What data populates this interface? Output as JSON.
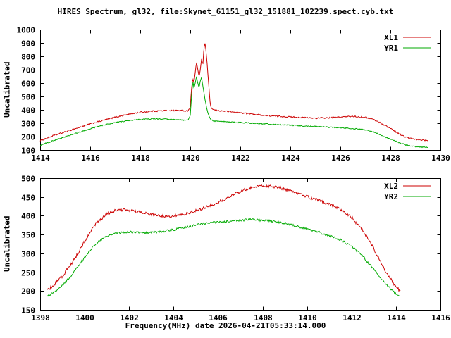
{
  "title": "HIRES Spectrum, gl32, file:Skynet_61151_gl32_151881_102239.spect.cyb.txt",
  "xlabel": "Frequency(MHz) date 2026-04-21T05:33:14.000",
  "colors": {
    "line_red": "#cc0000",
    "line_green": "#00aa00",
    "axis": "#000000",
    "background": "#ffffff"
  },
  "chart_data": [
    {
      "type": "line",
      "ylabel": "Uncalibrated",
      "xlim": [
        1414,
        1430
      ],
      "xtick_step": 2,
      "ylim": [
        100,
        1000
      ],
      "ytick_step": 100,
      "grid": false,
      "legend_position": "top-right",
      "series": [
        {
          "name": "XL1",
          "color": "#cc0000",
          "noise": 5,
          "points": [
            [
              1414,
              170
            ],
            [
              1414.5,
              205
            ],
            [
              1415,
              235
            ],
            [
              1415.5,
              265
            ],
            [
              1416,
              295
            ],
            [
              1416.5,
              320
            ],
            [
              1417,
              345
            ],
            [
              1417.5,
              365
            ],
            [
              1418,
              382
            ],
            [
              1418.5,
              390
            ],
            [
              1419,
              394
            ],
            [
              1419.5,
              396
            ],
            [
              1419.9,
              392
            ],
            [
              1420,
              420
            ],
            [
              1420.05,
              560
            ],
            [
              1420.1,
              640
            ],
            [
              1420.15,
              600
            ],
            [
              1420.2,
              680
            ],
            [
              1420.25,
              760
            ],
            [
              1420.3,
              700
            ],
            [
              1420.35,
              645
            ],
            [
              1420.4,
              700
            ],
            [
              1420.45,
              780
            ],
            [
              1420.5,
              730
            ],
            [
              1420.55,
              870
            ],
            [
              1420.6,
              895
            ],
            [
              1420.65,
              800
            ],
            [
              1420.7,
              680
            ],
            [
              1420.75,
              555
            ],
            [
              1420.8,
              430
            ],
            [
              1420.9,
              402
            ],
            [
              1421,
              396
            ],
            [
              1421.5,
              388
            ],
            [
              1422,
              378
            ],
            [
              1422.5,
              368
            ],
            [
              1423,
              358
            ],
            [
              1423.5,
              352
            ],
            [
              1424,
              347
            ],
            [
              1424.5,
              342
            ],
            [
              1425,
              338
            ],
            [
              1425.5,
              340
            ],
            [
              1426,
              346
            ],
            [
              1426.5,
              352
            ],
            [
              1427,
              344
            ],
            [
              1427.3,
              330
            ],
            [
              1427.6,
              302
            ],
            [
              1428,
              262
            ],
            [
              1428.3,
              226
            ],
            [
              1428.6,
              196
            ],
            [
              1429,
              178
            ],
            [
              1429.5,
              172
            ]
          ]
        },
        {
          "name": "YR1",
          "color": "#00aa00",
          "noise": 4,
          "points": [
            [
              1414,
              135
            ],
            [
              1414.5,
              168
            ],
            [
              1415,
              198
            ],
            [
              1415.5,
              228
            ],
            [
              1416,
              258
            ],
            [
              1416.5,
              285
            ],
            [
              1417,
              305
            ],
            [
              1417.5,
              318
            ],
            [
              1418,
              328
            ],
            [
              1418.5,
              333
            ],
            [
              1419,
              330
            ],
            [
              1419.5,
              325
            ],
            [
              1419.9,
              321
            ],
            [
              1420,
              355
            ],
            [
              1420.05,
              500
            ],
            [
              1420.1,
              615
            ],
            [
              1420.15,
              560
            ],
            [
              1420.2,
              600
            ],
            [
              1420.25,
              648
            ],
            [
              1420.3,
              600
            ],
            [
              1420.35,
              565
            ],
            [
              1420.4,
              618
            ],
            [
              1420.45,
              640
            ],
            [
              1420.5,
              580
            ],
            [
              1420.55,
              525
            ],
            [
              1420.6,
              465
            ],
            [
              1420.65,
              420
            ],
            [
              1420.7,
              380
            ],
            [
              1420.8,
              332
            ],
            [
              1420.9,
              320
            ],
            [
              1421,
              316
            ],
            [
              1421.5,
              310
            ],
            [
              1422,
              305
            ],
            [
              1422.5,
              300
            ],
            [
              1423,
              295
            ],
            [
              1423.5,
              290
            ],
            [
              1424,
              285
            ],
            [
              1424.5,
              280
            ],
            [
              1425,
              276
            ],
            [
              1425.5,
              271
            ],
            [
              1426,
              266
            ],
            [
              1426.5,
              260
            ],
            [
              1427,
              250
            ],
            [
              1427.3,
              236
            ],
            [
              1427.6,
              212
            ],
            [
              1428,
              182
            ],
            [
              1428.3,
              158
            ],
            [
              1428.6,
              138
            ],
            [
              1429,
              125
            ],
            [
              1429.5,
              120
            ]
          ]
        }
      ]
    },
    {
      "type": "line",
      "ylabel": "Uncalibrated",
      "xlim": [
        1398,
        1416
      ],
      "xtick_step": 2,
      "ylim": [
        150,
        500
      ],
      "ytick_step": 50,
      "grid": false,
      "legend_position": "top-right",
      "series": [
        {
          "name": "XL2",
          "color": "#cc0000",
          "noise": 4,
          "points": [
            [
              1398.3,
              200
            ],
            [
              1398.6,
              216
            ],
            [
              1399,
              240
            ],
            [
              1399.5,
              280
            ],
            [
              1400,
              332
            ],
            [
              1400.5,
              378
            ],
            [
              1401,
              405
            ],
            [
              1401.5,
              416
            ],
            [
              1402,
              415
            ],
            [
              1402.5,
              409
            ],
            [
              1403,
              404
            ],
            [
              1403.5,
              400
            ],
            [
              1404,
              399
            ],
            [
              1404.5,
              404
            ],
            [
              1405,
              413
            ],
            [
              1405.5,
              424
            ],
            [
              1406,
              436
            ],
            [
              1406.5,
              451
            ],
            [
              1407,
              465
            ],
            [
              1407.5,
              475
            ],
            [
              1408,
              480
            ],
            [
              1408.5,
              478
            ],
            [
              1409,
              471
            ],
            [
              1409.5,
              461
            ],
            [
              1410,
              451
            ],
            [
              1410.5,
              441
            ],
            [
              1411,
              431
            ],
            [
              1411.5,
              417
            ],
            [
              1412,
              396
            ],
            [
              1412.5,
              362
            ],
            [
              1413,
              312
            ],
            [
              1413.5,
              256
            ],
            [
              1414,
              210
            ],
            [
              1414.2,
              200
            ]
          ]
        },
        {
          "name": "YR2",
          "color": "#00aa00",
          "noise": 3,
          "points": [
            [
              1398.3,
              185
            ],
            [
              1398.6,
              196
            ],
            [
              1399,
              214
            ],
            [
              1399.5,
              248
            ],
            [
              1400,
              290
            ],
            [
              1400.5,
              326
            ],
            [
              1401,
              347
            ],
            [
              1401.5,
              355
            ],
            [
              1402,
              357
            ],
            [
              1402.5,
              355
            ],
            [
              1403,
              355
            ],
            [
              1403.5,
              358
            ],
            [
              1404,
              363
            ],
            [
              1404.5,
              369
            ],
            [
              1405,
              375
            ],
            [
              1405.5,
              380
            ],
            [
              1406,
              383
            ],
            [
              1406.5,
              386
            ],
            [
              1407,
              388
            ],
            [
              1407.5,
              390
            ],
            [
              1408,
              388
            ],
            [
              1408.5,
              385
            ],
            [
              1409,
              380
            ],
            [
              1409.5,
              373
            ],
            [
              1410,
              365
            ],
            [
              1410.5,
              357
            ],
            [
              1411,
              347
            ],
            [
              1411.5,
              336
            ],
            [
              1412,
              319
            ],
            [
              1412.5,
              293
            ],
            [
              1413,
              258
            ],
            [
              1413.5,
              222
            ],
            [
              1414,
              192
            ],
            [
              1414.2,
              186
            ]
          ]
        }
      ]
    }
  ]
}
